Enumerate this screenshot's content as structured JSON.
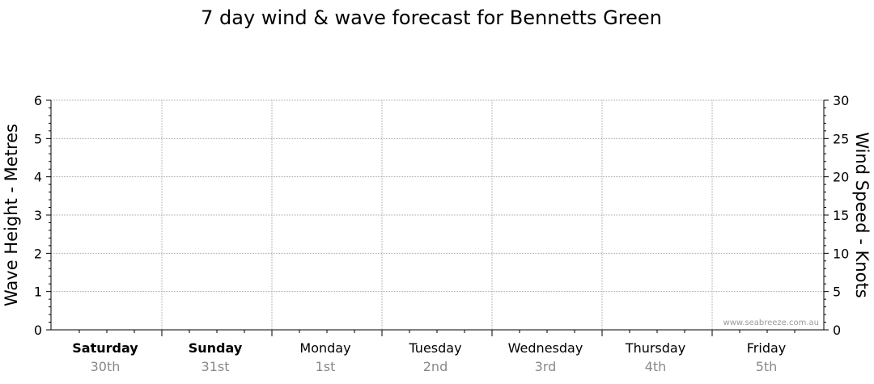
{
  "chart_data": {
    "type": "line",
    "title": "7 day wind & wave forecast for Bennetts Green",
    "ylabel_left": "Wave Height - Metres",
    "ylabel_right": "Wind Speed - Knots",
    "ylim_left": [
      0,
      6
    ],
    "ylim_right": [
      0,
      30
    ],
    "yticks_left": [
      "0",
      "1",
      "2",
      "3",
      "4",
      "5",
      "6"
    ],
    "yticks_right": [
      "0",
      "5",
      "10",
      "15",
      "20",
      "25",
      "30"
    ],
    "grid": true,
    "days": [
      {
        "name": "Saturday",
        "date": "30th",
        "bold": true
      },
      {
        "name": "Sunday",
        "date": "31st",
        "bold": true
      },
      {
        "name": "Monday",
        "date": "1st",
        "bold": false
      },
      {
        "name": "Tuesday",
        "date": "2nd",
        "bold": false
      },
      {
        "name": "Wednesday",
        "date": "3rd",
        "bold": false
      },
      {
        "name": "Thursday",
        "date": "4th",
        "bold": false
      },
      {
        "name": "Friday",
        "date": "5th",
        "bold": false
      }
    ],
    "series": [],
    "watermark": "www.seabreeze.com.au"
  }
}
